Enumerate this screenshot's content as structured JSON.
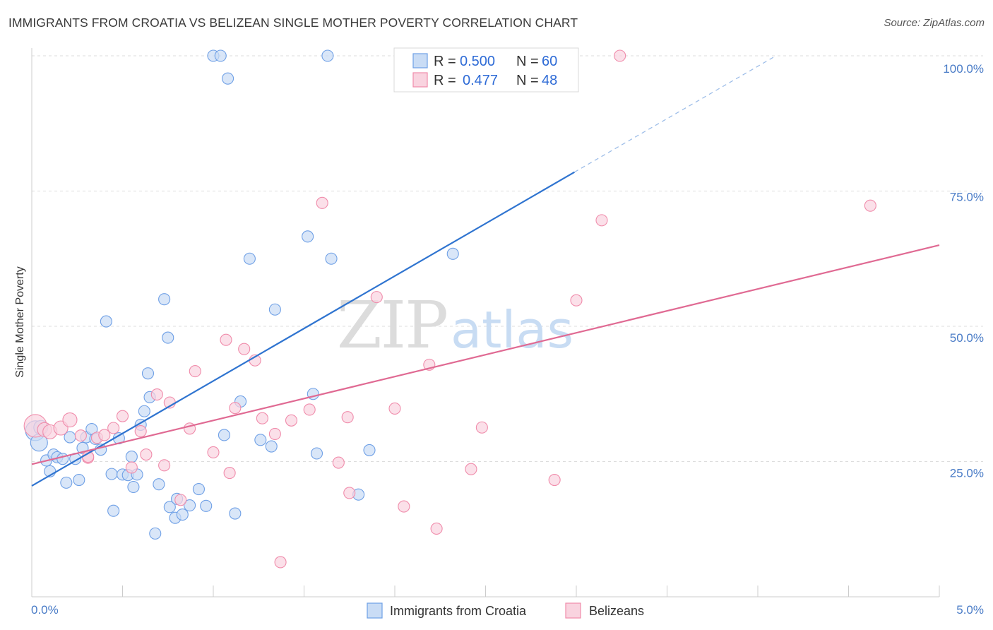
{
  "header": {
    "title": "IMMIGRANTS FROM CROATIA VS BELIZEAN SINGLE MOTHER POVERTY CORRELATION CHART",
    "source": "Source: ZipAtlas.com"
  },
  "watermark": {
    "zip": "ZIP",
    "atlas": "atlas"
  },
  "legend": {
    "r_label": "R =",
    "n_label": "N =",
    "rows": [
      {
        "r": "0.500",
        "n": "60",
        "color": "#6fa0e6"
      },
      {
        "r": "0.477",
        "n": "48",
        "color": "#f08cab"
      }
    ]
  },
  "chart_data": {
    "type": "scatter",
    "xlabel": "",
    "ylabel": "Single Mother Poverty",
    "xlim": [
      0,
      5
    ],
    "ylim": [
      0,
      100
    ],
    "x_ticks": [
      "0.0%",
      "5.0%"
    ],
    "y_ticks": [
      "25.0%",
      "50.0%",
      "75.0%",
      "100.0%"
    ],
    "y_tick_values": [
      25,
      50,
      75,
      100
    ],
    "grid": true,
    "legend_position": "top-center",
    "series": [
      {
        "name": "Immigrants from Croatia",
        "color": "#6fa0e6",
        "fill": "#c9dcf5",
        "trend": {
          "x0": 0,
          "y0": 20.5,
          "x1": 2.99,
          "y1": 78.5,
          "dash_to_x": 4.1,
          "dash_to_y": 100
        },
        "points": [
          [
            0.02,
            30.7,
            14
          ],
          [
            0.04,
            28.5,
            12
          ],
          [
            0.05,
            31.3,
            10
          ],
          [
            0.08,
            25.2,
            8
          ],
          [
            0.1,
            23.2,
            8
          ],
          [
            0.12,
            26.3,
            8
          ],
          [
            0.14,
            25.8,
            8
          ],
          [
            0.17,
            25.5,
            8
          ],
          [
            0.19,
            21.1,
            8
          ],
          [
            0.21,
            29.5,
            8
          ],
          [
            0.24,
            25.5,
            8
          ],
          [
            0.26,
            21.6,
            8
          ],
          [
            0.28,
            27.5,
            8
          ],
          [
            0.3,
            29.5,
            8
          ],
          [
            0.33,
            31.0,
            8
          ],
          [
            0.35,
            29.2,
            8
          ],
          [
            0.38,
            27.2,
            8
          ],
          [
            0.41,
            50.9,
            8
          ],
          [
            0.44,
            22.7,
            8
          ],
          [
            0.45,
            15.9,
            8
          ],
          [
            0.48,
            29.3,
            8
          ],
          [
            0.5,
            22.6,
            8
          ],
          [
            0.53,
            22.5,
            8
          ],
          [
            0.55,
            25.9,
            8
          ],
          [
            0.56,
            20.3,
            8
          ],
          [
            0.6,
            31.8,
            8
          ],
          [
            0.62,
            34.3,
            8
          ],
          [
            0.64,
            41.3,
            8
          ],
          [
            0.65,
            36.9,
            8
          ],
          [
            0.68,
            11.7,
            8
          ],
          [
            0.7,
            20.8,
            8
          ],
          [
            0.73,
            55.0,
            8
          ],
          [
            0.75,
            47.9,
            8
          ],
          [
            0.76,
            16.6,
            8
          ],
          [
            0.79,
            14.6,
            8
          ],
          [
            0.8,
            18.1,
            8
          ],
          [
            0.83,
            15.2,
            8
          ],
          [
            0.87,
            16.9,
            8
          ],
          [
            0.92,
            19.9,
            8
          ],
          [
            0.96,
            16.8,
            8
          ],
          [
            1.0,
            100.0,
            8
          ],
          [
            1.04,
            100.0,
            8
          ],
          [
            1.06,
            29.9,
            8
          ],
          [
            1.08,
            95.8,
            8
          ],
          [
            1.12,
            15.4,
            8
          ],
          [
            1.15,
            36.1,
            8
          ],
          [
            1.2,
            62.5,
            8
          ],
          [
            1.26,
            29.0,
            8
          ],
          [
            1.32,
            27.8,
            8
          ],
          [
            1.34,
            53.1,
            8
          ],
          [
            1.52,
            66.6,
            8
          ],
          [
            1.55,
            37.5,
            8
          ],
          [
            1.57,
            26.5,
            8
          ],
          [
            1.63,
            100.0,
            8
          ],
          [
            1.65,
            62.5,
            8
          ],
          [
            1.8,
            18.9,
            8
          ],
          [
            1.86,
            27.1,
            8
          ],
          [
            2.32,
            63.4,
            8
          ],
          [
            2.91,
            100.0,
            8
          ],
          [
            0.58,
            22.6,
            8
          ]
        ]
      },
      {
        "name": "Belizeans",
        "color": "#f08cab",
        "fill": "#f9d3df",
        "trend": {
          "x0": 0,
          "y0": 24.5,
          "x1": 5,
          "y1": 65
        },
        "points": [
          [
            0.02,
            31.6,
            16
          ],
          [
            0.07,
            30.9,
            10
          ],
          [
            0.1,
            30.5,
            10
          ],
          [
            0.16,
            31.2,
            10
          ],
          [
            0.21,
            32.7,
            10
          ],
          [
            0.27,
            29.8,
            8
          ],
          [
            0.31,
            25.7,
            8
          ],
          [
            0.36,
            29.4,
            8
          ],
          [
            0.4,
            29.9,
            8
          ],
          [
            0.45,
            31.2,
            8
          ],
          [
            0.5,
            33.4,
            8
          ],
          [
            0.55,
            23.9,
            8
          ],
          [
            0.6,
            30.6,
            8
          ],
          [
            0.63,
            26.3,
            8
          ],
          [
            0.69,
            37.4,
            8
          ],
          [
            0.73,
            24.3,
            8
          ],
          [
            0.76,
            35.9,
            8
          ],
          [
            0.82,
            17.9,
            8
          ],
          [
            0.87,
            31.1,
            8
          ],
          [
            0.9,
            41.7,
            8
          ],
          [
            1.0,
            26.7,
            8
          ],
          [
            1.07,
            47.5,
            8
          ],
          [
            1.09,
            22.9,
            8
          ],
          [
            1.12,
            34.9,
            8
          ],
          [
            1.17,
            45.8,
            8
          ],
          [
            1.23,
            43.7,
            8
          ],
          [
            1.27,
            33.0,
            8
          ],
          [
            1.34,
            30.1,
            8
          ],
          [
            1.37,
            6.4,
            8
          ],
          [
            1.43,
            32.6,
            8
          ],
          [
            1.53,
            34.6,
            8
          ],
          [
            1.6,
            72.8,
            8
          ],
          [
            1.69,
            24.8,
            8
          ],
          [
            1.74,
            33.2,
            8
          ],
          [
            1.75,
            19.2,
            8
          ],
          [
            1.9,
            55.4,
            8
          ],
          [
            2.0,
            34.8,
            8
          ],
          [
            2.05,
            16.7,
            8
          ],
          [
            2.19,
            42.9,
            8
          ],
          [
            2.23,
            12.6,
            8
          ],
          [
            2.42,
            23.6,
            8
          ],
          [
            2.48,
            31.3,
            8
          ],
          [
            2.88,
            21.6,
            8
          ],
          [
            3.0,
            54.8,
            8
          ],
          [
            3.14,
            69.6,
            8
          ],
          [
            3.24,
            100.0,
            8
          ],
          [
            4.62,
            72.3,
            8
          ],
          [
            0.31,
            25.9,
            8
          ]
        ]
      }
    ]
  }
}
